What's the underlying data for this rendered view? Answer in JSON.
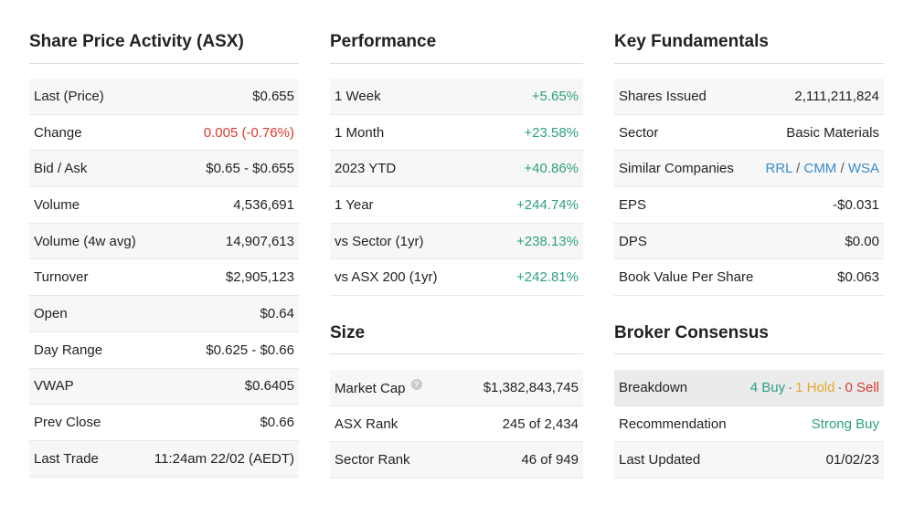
{
  "share_price": {
    "title": "Share Price Activity (ASX)",
    "rows": [
      {
        "label": "Last (Price)",
        "value": "$0.655"
      },
      {
        "label": "Change",
        "value": "0.005 (-0.76%)"
      },
      {
        "label": "Bid / Ask",
        "value": "$0.65 - $0.655"
      },
      {
        "label": "Volume",
        "value": "4,536,691"
      },
      {
        "label": "Volume (4w avg)",
        "value": "14,907,613"
      },
      {
        "label": "Turnover",
        "value": "$2,905,123"
      },
      {
        "label": "Open",
        "value": "$0.64"
      },
      {
        "label": "Day Range",
        "value": "$0.625 - $0.66"
      },
      {
        "label": "VWAP",
        "value": "$0.6405"
      },
      {
        "label": "Prev Close",
        "value": "$0.66"
      },
      {
        "label": "Last Trade",
        "value": "11:24am 22/02 (AEDT)"
      }
    ]
  },
  "performance": {
    "title": "Performance",
    "rows": [
      {
        "label": "1 Week",
        "value": "+5.65%"
      },
      {
        "label": "1 Month",
        "value": "+23.58%"
      },
      {
        "label": "2023 YTD",
        "value": "+40.86%"
      },
      {
        "label": "1 Year",
        "value": "+244.74%"
      },
      {
        "label": "vs Sector (1yr)",
        "value": "+238.13%"
      },
      {
        "label": "vs ASX 200 (1yr)",
        "value": "+242.81%"
      }
    ]
  },
  "size": {
    "title": "Size",
    "help_glyph": "?",
    "rows": [
      {
        "label": "Market Cap",
        "value": "$1,382,843,745"
      },
      {
        "label": "ASX Rank",
        "value": "245 of 2,434"
      },
      {
        "label": "Sector Rank",
        "value": "46 of 949"
      }
    ]
  },
  "fundamentals": {
    "title": "Key Fundamentals",
    "rows": [
      {
        "label": "Shares Issued",
        "value": "2,111,211,824"
      },
      {
        "label": "Sector",
        "value": "Basic Materials"
      },
      {
        "label": "Similar Companies",
        "links": [
          "RRL",
          "CMM",
          "WSA"
        ],
        "separator": "/"
      },
      {
        "label": "EPS",
        "value": "-$0.031"
      },
      {
        "label": "DPS",
        "value": "$0.00"
      },
      {
        "label": "Book Value Per Share",
        "value": "$0.063"
      }
    ]
  },
  "broker": {
    "title": "Broker Consensus",
    "breakdown_label": "Breakdown",
    "buy": "4 Buy",
    "hold": "1 Hold",
    "sell": "0 Sell",
    "dot": "·",
    "recommendation_label": "Recommendation",
    "recommendation_value": "Strong Buy",
    "updated_label": "Last Updated",
    "updated_value": "01/02/23"
  },
  "colors": {
    "positive": "#2e9f82",
    "negative": "#d9382d",
    "link": "#3a8bd1",
    "hold": "#e0a72a"
  }
}
